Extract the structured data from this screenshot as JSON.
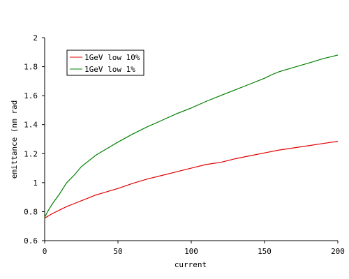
{
  "chart_data": {
    "type": "line",
    "title": "",
    "xlabel": "current",
    "ylabel": "emittance (nm rad",
    "xlim": [
      0,
      200
    ],
    "ylim": [
      0.6,
      2
    ],
    "x_ticks": [
      "0",
      "50",
      "100",
      "150",
      "200"
    ],
    "y_ticks": [
      "0.6",
      "0.8",
      "1",
      "1.2",
      "1.4",
      "1.6",
      "1.8",
      "2"
    ],
    "grid": false,
    "legend_position": "top-left",
    "series": [
      {
        "name": "1GeV low 10%",
        "color": "#e00000",
        "x": [
          0,
          5,
          10,
          15,
          20,
          25,
          30,
          35,
          40,
          50,
          60,
          70,
          80,
          90,
          100,
          110,
          120,
          130,
          140,
          150,
          160,
          170,
          180,
          190,
          200
        ],
        "y": [
          0.755,
          0.785,
          0.81,
          0.835,
          0.855,
          0.875,
          0.895,
          0.915,
          0.93,
          0.96,
          0.995,
          1.025,
          1.05,
          1.075,
          1.1,
          1.125,
          1.14,
          1.165,
          1.185,
          1.205,
          1.225,
          1.24,
          1.255,
          1.27,
          1.285
        ]
      },
      {
        "name": "1GeV low 1%",
        "color": "#008000",
        "x": [
          0,
          2,
          5,
          10,
          15,
          20,
          25,
          30,
          35,
          40,
          50,
          60,
          70,
          80,
          90,
          100,
          110,
          120,
          130,
          140,
          150,
          155,
          160,
          170,
          180,
          190,
          200
        ],
        "y": [
          0.76,
          0.8,
          0.85,
          0.92,
          1.0,
          1.05,
          1.11,
          1.15,
          1.19,
          1.22,
          1.28,
          1.335,
          1.385,
          1.43,
          1.475,
          1.515,
          1.56,
          1.6,
          1.64,
          1.68,
          1.72,
          1.745,
          1.765,
          1.795,
          1.825,
          1.855,
          1.88
        ]
      }
    ]
  }
}
